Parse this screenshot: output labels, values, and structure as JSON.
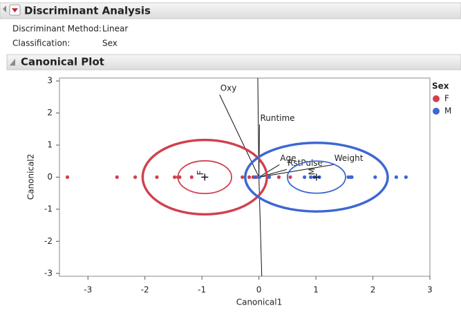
{
  "header": {
    "title": "Discriminant Analysis"
  },
  "info": [
    {
      "label": "Discriminant Method:",
      "value": "Linear"
    },
    {
      "label": "Classification:",
      "value": "Sex"
    }
  ],
  "chart_data": {
    "type": "scatter",
    "title": "Canonical Plot",
    "x_label": "Canonical1",
    "y_label": "Canonical2",
    "legend_title": "Sex",
    "legend_position": "right",
    "xlim": [
      -3.5,
      3
    ],
    "ylim": [
      -3.09,
      3.09
    ],
    "xticks": [
      -3,
      -2,
      -1,
      0,
      1,
      2,
      3
    ],
    "yticks": [
      -3,
      -2,
      -1,
      0,
      1,
      2,
      3
    ],
    "series": [
      {
        "name": "F",
        "color": "#d0414f",
        "x": [
          -3.36,
          -2.49,
          -2.17,
          -1.79,
          -1.48,
          -1.42,
          -1.39,
          -1.18,
          -0.29,
          -0.17,
          -0.1,
          -0.04,
          0.35,
          0.55
        ],
        "y": [
          0,
          0,
          0,
          0,
          0,
          0,
          0,
          0,
          0,
          0,
          0,
          0,
          0,
          0
        ],
        "center": [
          -0.95,
          0
        ],
        "ellipses": [
          {
            "rx": 1.09,
            "ry": 1.16
          },
          {
            "rx": 0.47,
            "ry": 0.51
          }
        ]
      },
      {
        "name": "M",
        "color": "#3d67d3",
        "x": [
          -0.07,
          0.01,
          0.18,
          0.8,
          0.91,
          0.97,
          1.06,
          1.57,
          1.61,
          1.63,
          2.04,
          2.41,
          2.58
        ],
        "y": [
          0,
          0,
          0,
          0,
          0,
          0,
          0,
          0,
          0,
          0,
          0,
          0,
          0
        ],
        "center": [
          1.01,
          0
        ],
        "ellipses": [
          {
            "rx": 1.25,
            "ry": 1.07
          },
          {
            "rx": 0.51,
            "ry": 0.5
          }
        ]
      }
    ],
    "rays": [
      {
        "label": "Oxy",
        "x": -0.69,
        "y": 2.57
      },
      {
        "label": "Runtime",
        "x": 0.01,
        "y": 1.64
      },
      {
        "label": "Age",
        "x": 0.36,
        "y": 0.39
      },
      {
        "label": "RstPulse",
        "x": 0.49,
        "y": 0.24
      },
      {
        "label": "Weight",
        "x": 1.31,
        "y": 0.39
      },
      {
        "label": null,
        "x": -0.02,
        "y": 3.09
      },
      {
        "label": null,
        "x": 0.05,
        "y": -3.09
      }
    ]
  }
}
